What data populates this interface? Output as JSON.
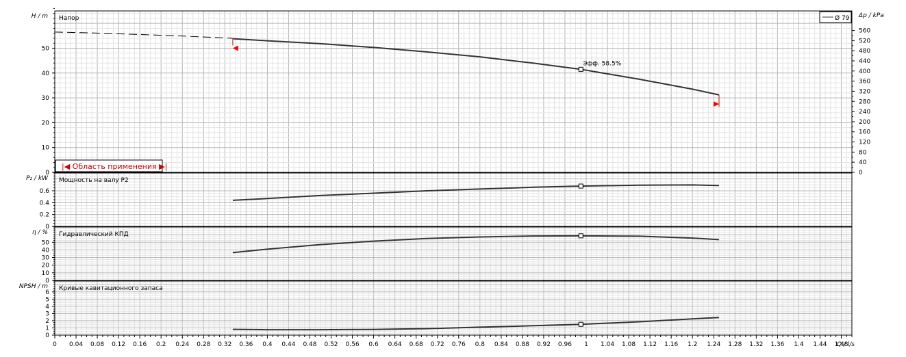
{
  "chart_data": {
    "type": "line",
    "x_axis": {
      "label": "Q / l/s",
      "min": 0,
      "max": 1.5,
      "ticks": [
        "0",
        "0.04",
        "0.08",
        "0.12",
        "0.16",
        "0.2",
        "0.24",
        "0.28",
        "0.32",
        "0.36",
        "0.4",
        "0.44",
        "0.48",
        "0.52",
        "0.56",
        "0.6",
        "0.64",
        "0.68",
        "0.72",
        "0.76",
        "0.8",
        "0.84",
        "0.88",
        "0.92",
        "0.96",
        "1",
        "1.04",
        "1.08",
        "1.12",
        "1.16",
        "1.2",
        "1.24",
        "1.28",
        "1.32",
        "1.36",
        "1.4",
        "1.44",
        "1.48"
      ]
    },
    "legend": {
      "entries": [
        "Ø 79"
      ],
      "placement": "top-right"
    },
    "application_range_label": "|◀ Область применения ▶|",
    "panels": [
      {
        "id": "head",
        "title": "Напор",
        "ylabel": "H / m",
        "ylim": [
          0,
          65
        ],
        "yticks": [
          "0",
          "10",
          "20",
          "30",
          "40",
          "50"
        ],
        "y2label": "Δp / kPa",
        "y2lim": [
          0,
          637
        ],
        "y2ticks": [
          "0",
          "40",
          "80",
          "120",
          "160",
          "200",
          "240",
          "280",
          "320",
          "360",
          "400",
          "440",
          "480",
          "520",
          "560"
        ],
        "extrapolated": {
          "x": [
            0,
            0.08,
            0.16,
            0.24,
            0.335
          ],
          "y": [
            56.5,
            56.1,
            55.5,
            54.9,
            54.0
          ]
        },
        "series": [
          {
            "name": "Ø 79",
            "x": [
              0.335,
              0.4,
              0.5,
              0.6,
              0.7,
              0.8,
              0.9,
              0.99,
              1.1,
              1.2,
              1.25
            ],
            "y": [
              53.8,
              53.0,
              51.8,
              50.3,
              48.5,
              46.5,
              44.0,
              41.5,
              37.5,
              33.5,
              31.2
            ]
          }
        ],
        "duty_point": {
          "x": 0.99,
          "y": 41.5,
          "label": "Эфф. 58.5%"
        },
        "range_markers": {
          "min_x": 0.335,
          "min_y": 50,
          "max_x": 1.25,
          "max_y": 27.5
        }
      },
      {
        "id": "power",
        "title": "Мощность на валу  P2",
        "ylabel": "P₂ / kW",
        "ylim": [
          0,
          0.9
        ],
        "yticks": [
          "0",
          "0.2",
          "0.4",
          "0.6"
        ],
        "series": [
          {
            "name": "P2",
            "x": [
              0.335,
              0.4,
              0.5,
              0.6,
              0.7,
              0.8,
              0.9,
              0.99,
              1.1,
              1.2,
              1.25
            ],
            "y": [
              0.44,
              0.47,
              0.52,
              0.56,
              0.6,
              0.63,
              0.66,
              0.68,
              0.695,
              0.7,
              0.69
            ]
          }
        ],
        "duty_point": {
          "x": 0.99,
          "y": 0.68
        }
      },
      {
        "id": "efficiency",
        "title": "Гидравлический КПД",
        "ylabel": "η / %",
        "ylim": [
          0,
          70
        ],
        "yticks": [
          "0",
          "10",
          "20",
          "30",
          "40",
          "50"
        ],
        "series": [
          {
            "name": "η",
            "x": [
              0.335,
              0.4,
              0.5,
              0.6,
              0.7,
              0.8,
              0.9,
              0.99,
              1.1,
              1.2,
              1.25
            ],
            "y": [
              36.5,
              41.0,
              47.0,
              51.5,
              55.0,
              57.0,
              58.2,
              58.5,
              58.0,
              55.5,
              53.5
            ]
          }
        ],
        "duty_point": {
          "x": 0.99,
          "y": 58.5
        }
      },
      {
        "id": "npsh",
        "title": "Кривые кавитационного запаса",
        "ylabel": "NPSH / m",
        "ylim": [
          0,
          7.5
        ],
        "yticks": [
          "0",
          "1",
          "2",
          "3",
          "4",
          "5",
          "6"
        ],
        "series": [
          {
            "name": "NPSH",
            "x": [
              0.335,
              0.4,
              0.5,
              0.6,
              0.7,
              0.8,
              0.9,
              0.99,
              1.1,
              1.2,
              1.25
            ],
            "y": [
              0.8,
              0.75,
              0.75,
              0.78,
              0.9,
              1.1,
              1.3,
              1.5,
              1.85,
              2.25,
              2.45
            ]
          }
        ],
        "duty_point": {
          "x": 0.99,
          "y": 1.5
        }
      }
    ]
  }
}
